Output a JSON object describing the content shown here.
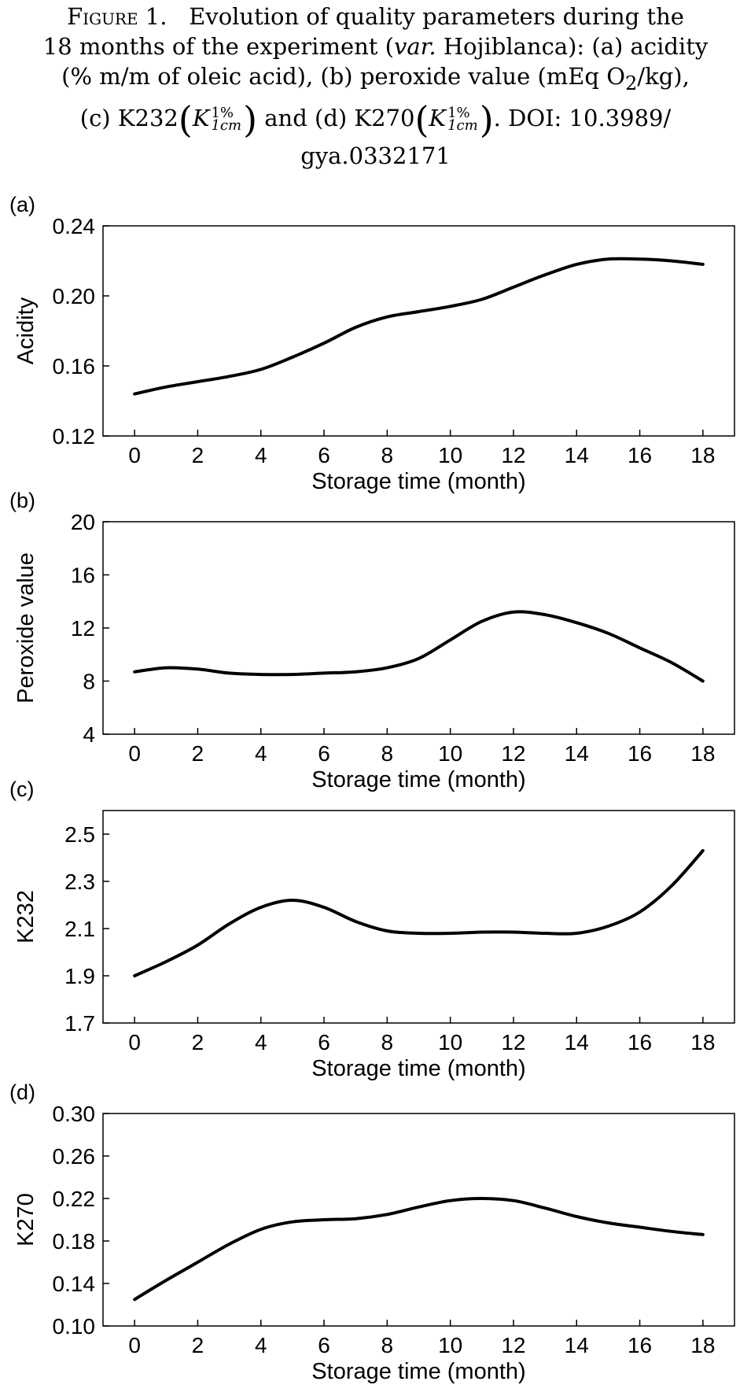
{
  "caption": {
    "figure_label": "Figure 1.",
    "line1": "Evolution of quality parameters during the",
    "line2": "18 months of the experiment (",
    "var_word": "var.",
    "line2_rest": " Hojiblanca): (a) acidity",
    "line3_start": "(% m/m of oleic acid), (b) peroxide value (mEq O",
    "line3_sub": "2",
    "line3_end": "/kg),",
    "c_label": "(c) K232",
    "d_label": "and (d) K270",
    "k_symbol": "K",
    "k_sup": "1%",
    "k_sub": "1cm",
    "doi": ". DOI: 10.3989/",
    "doi_end": "gya.0332171"
  },
  "colors": {
    "line": "#000000",
    "axes": "#000000",
    "background": "#ffffff"
  },
  "chart_data": [
    {
      "panel": "(a)",
      "type": "line",
      "xlabel": "Storage time (month)",
      "ylabel": "Acidity",
      "xlim": [
        -1,
        19
      ],
      "ylim": [
        0.12,
        0.24
      ],
      "xticks": [
        0,
        2,
        4,
        6,
        8,
        10,
        12,
        14,
        16,
        18
      ],
      "yticks": [
        0.12,
        0.16,
        0.2,
        0.24
      ],
      "ytick_labels": [
        "0.12",
        "0.16",
        "0.20",
        "0.24"
      ],
      "grid": false,
      "x": [
        0,
        1,
        2,
        3,
        4,
        5,
        6,
        7,
        8,
        9,
        10,
        11,
        12,
        13,
        14,
        15,
        16,
        17,
        18
      ],
      "y": [
        0.144,
        0.148,
        0.151,
        0.154,
        0.158,
        0.165,
        0.173,
        0.182,
        0.188,
        0.191,
        0.194,
        0.198,
        0.205,
        0.212,
        0.218,
        0.221,
        0.221,
        0.22,
        0.218
      ]
    },
    {
      "panel": "(b)",
      "type": "line",
      "xlabel": "Storage time (month)",
      "ylabel": "Peroxide value",
      "xlim": [
        -1,
        19
      ],
      "ylim": [
        4,
        20
      ],
      "xticks": [
        0,
        2,
        4,
        6,
        8,
        10,
        12,
        14,
        16,
        18
      ],
      "yticks": [
        4,
        8,
        12,
        16,
        20
      ],
      "ytick_labels": [
        "4",
        "8",
        "12",
        "16",
        "20"
      ],
      "grid": false,
      "x": [
        0,
        1,
        2,
        3,
        4,
        5,
        6,
        7,
        8,
        9,
        10,
        11,
        12,
        13,
        14,
        15,
        16,
        17,
        18
      ],
      "y": [
        8.7,
        9.0,
        8.9,
        8.6,
        8.5,
        8.5,
        8.6,
        8.7,
        9.0,
        9.7,
        11.1,
        12.5,
        13.2,
        13.0,
        12.4,
        11.6,
        10.5,
        9.4,
        8.0
      ]
    },
    {
      "panel": "(c)",
      "type": "line",
      "xlabel": "Storage time (month)",
      "ylabel": "K232",
      "xlim": [
        -1,
        19
      ],
      "ylim": [
        1.7,
        2.6
      ],
      "xticks": [
        0,
        2,
        4,
        6,
        8,
        10,
        12,
        14,
        16,
        18
      ],
      "yticks": [
        1.7,
        1.9,
        2.1,
        2.3,
        2.5
      ],
      "ytick_labels": [
        "1.7",
        "1.9",
        "2.1",
        "2.3",
        "2.5"
      ],
      "grid": false,
      "x": [
        0,
        1,
        2,
        3,
        4,
        5,
        6,
        7,
        8,
        9,
        10,
        11,
        12,
        13,
        14,
        15,
        16,
        17,
        18
      ],
      "y": [
        1.9,
        1.96,
        2.03,
        2.12,
        2.19,
        2.22,
        2.19,
        2.13,
        2.09,
        2.08,
        2.08,
        2.085,
        2.085,
        2.08,
        2.08,
        2.11,
        2.17,
        2.28,
        2.43
      ]
    },
    {
      "panel": "(d)",
      "type": "line",
      "xlabel": "Storage time (month)",
      "ylabel": "K270",
      "xlim": [
        -1,
        19
      ],
      "ylim": [
        0.1,
        0.3
      ],
      "xticks": [
        0,
        2,
        4,
        6,
        8,
        10,
        12,
        14,
        16,
        18
      ],
      "yticks": [
        0.1,
        0.14,
        0.18,
        0.22,
        0.26,
        0.3
      ],
      "ytick_labels": [
        "0.10",
        "0.14",
        "0.18",
        "0.22",
        "0.26",
        "0.30"
      ],
      "grid": false,
      "x": [
        0,
        1,
        2,
        3,
        4,
        5,
        6,
        7,
        8,
        9,
        10,
        11,
        12,
        13,
        14,
        15,
        16,
        17,
        18
      ],
      "y": [
        0.125,
        0.143,
        0.16,
        0.177,
        0.191,
        0.198,
        0.2,
        0.201,
        0.205,
        0.212,
        0.218,
        0.22,
        0.218,
        0.211,
        0.203,
        0.197,
        0.193,
        0.189,
        0.186
      ]
    }
  ]
}
